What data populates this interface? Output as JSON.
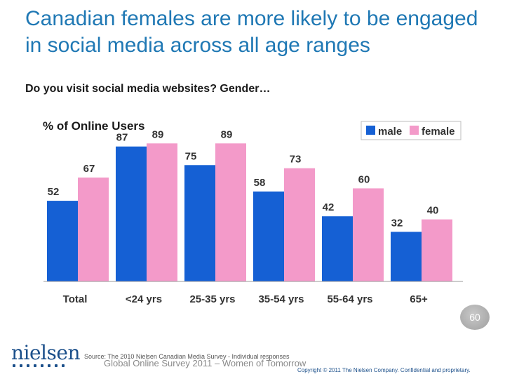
{
  "slide": {
    "title": "Canadian females are more likely to be engaged in social media across all age ranges",
    "subtitle": "Do you visit social media websites?  Gender…",
    "page_number": "60",
    "source": "Source: The 2010 Nielsen Canadian Media Survey - Individual responses",
    "footer_ghost": "Global Online Survey 2011 – Women of Tomorrow",
    "copyright": "Copyright © 2011 The Nielsen Company. Confidential and proprietary.",
    "logo_text": "nielsen"
  },
  "colors": {
    "title": "#1f78b4",
    "male": "#1560d4",
    "female": "#f39ac9",
    "axis": "#9a9a9a",
    "logo": "#1b4f8a"
  },
  "chart_data": {
    "type": "bar",
    "ylabel": "% of Online Users",
    "categories": [
      "Total",
      "<24 yrs",
      "25-35 yrs",
      "35-54 yrs",
      "55-64 yrs",
      "65+"
    ],
    "series": [
      {
        "name": "male",
        "values": [
          52,
          87,
          75,
          58,
          42,
          32
        ]
      },
      {
        "name": "female",
        "values": [
          67,
          89,
          89,
          73,
          60,
          40
        ]
      }
    ],
    "ylim": [
      0,
      100
    ],
    "grid": false,
    "legend": "top-right",
    "data_labels": true
  }
}
